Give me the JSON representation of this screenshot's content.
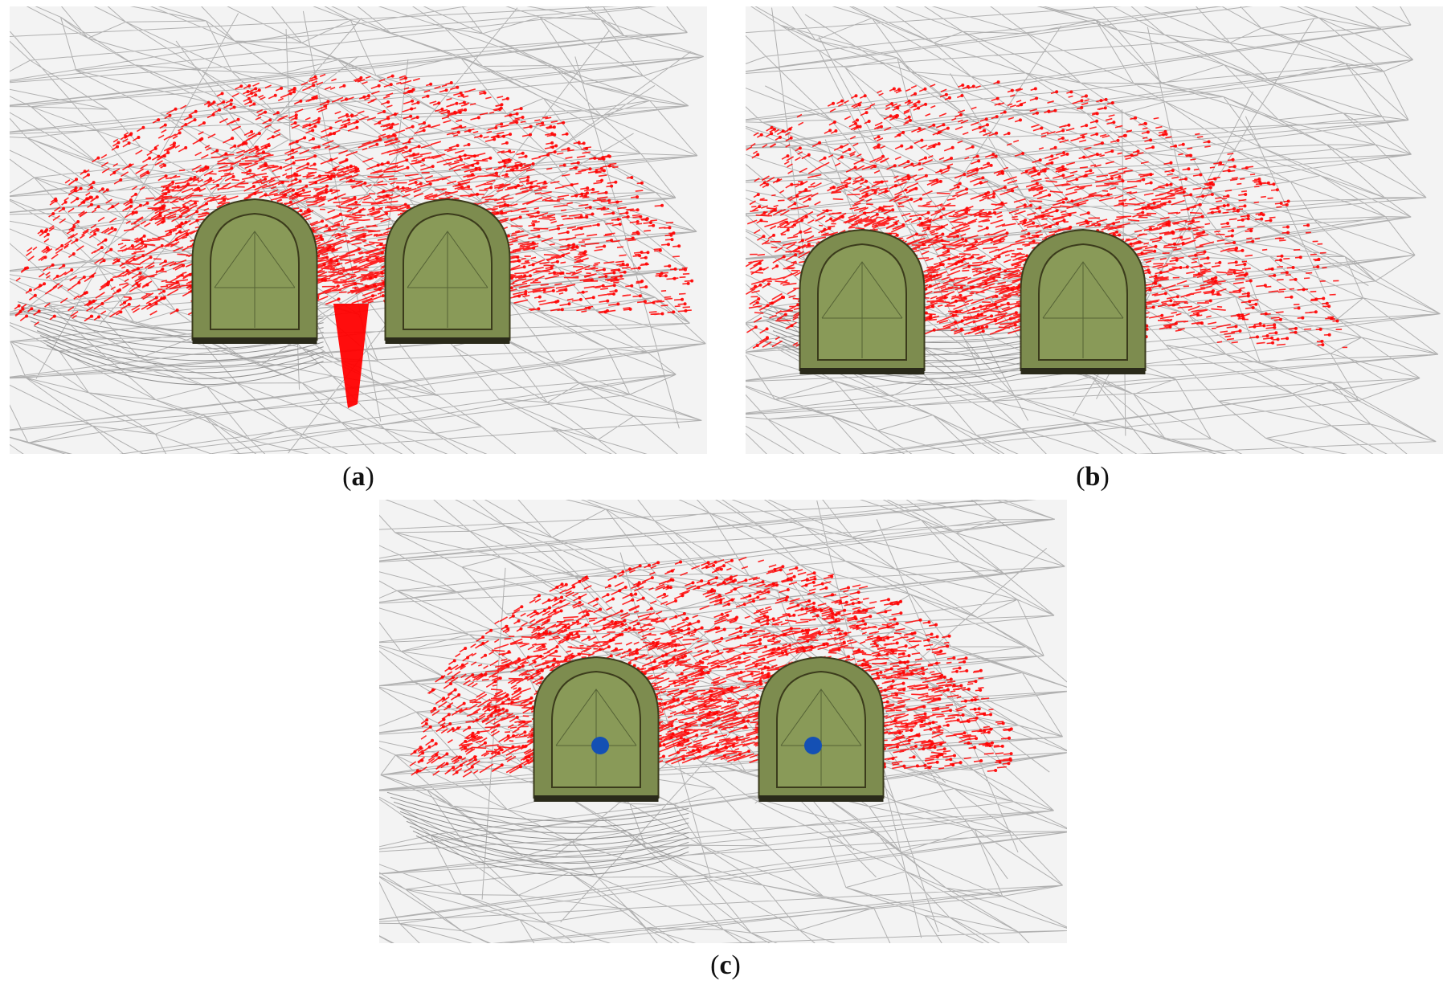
{
  "panels": [
    {
      "id": "a",
      "label": "a",
      "open": "(",
      "close": ")",
      "show_markers": false
    },
    {
      "id": "b",
      "label": "b",
      "open": "(",
      "close": ")",
      "show_markers": false
    },
    {
      "id": "c",
      "label": "c",
      "open": "(",
      "close": ")",
      "show_markers": true
    }
  ],
  "colors": {
    "background": "#f3f3f3",
    "mesh": "#a9a9a9",
    "vectors": "#ff0000",
    "tunnel_lining": "#7d8c4f",
    "tunnel_face": "#899a58",
    "tunnel_edge": "#3b3b1c",
    "marker": "#1450b4"
  },
  "icons": [
    "mesh-wireframe",
    "displacement-vector-field",
    "tunnel-portal",
    "monitoring-point-marker"
  ]
}
